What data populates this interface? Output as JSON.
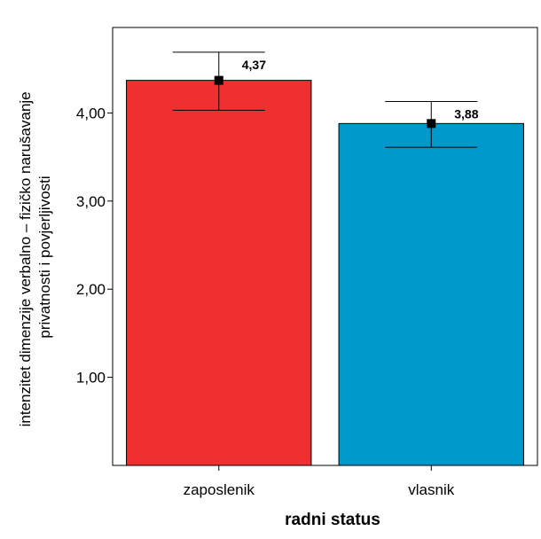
{
  "chart_data": {
    "type": "bar",
    "categories": [
      "zaposlenik",
      "vlasnik"
    ],
    "values": [
      4.37,
      3.88
    ],
    "error_bars": [
      {
        "lower": 4.03,
        "upper": 4.69
      },
      {
        "lower": 3.61,
        "upper": 4.13
      }
    ],
    "data_labels": [
      "4,37",
      "3,88"
    ],
    "bar_colors": [
      "#f03030",
      "#0099cc"
    ],
    "xlabel": "radni status",
    "ylabel_lines": [
      "intenzitet dimenzije verbalno – fizičko narušavanje",
      "privatnosti i povjerljivosti"
    ],
    "yticks": [
      1,
      2,
      3,
      4
    ],
    "ytick_labels": [
      "1,00",
      "2,00",
      "3,00",
      "4,00"
    ],
    "ylim": [
      0,
      4.97
    ],
    "grid": false,
    "legend": "none"
  }
}
